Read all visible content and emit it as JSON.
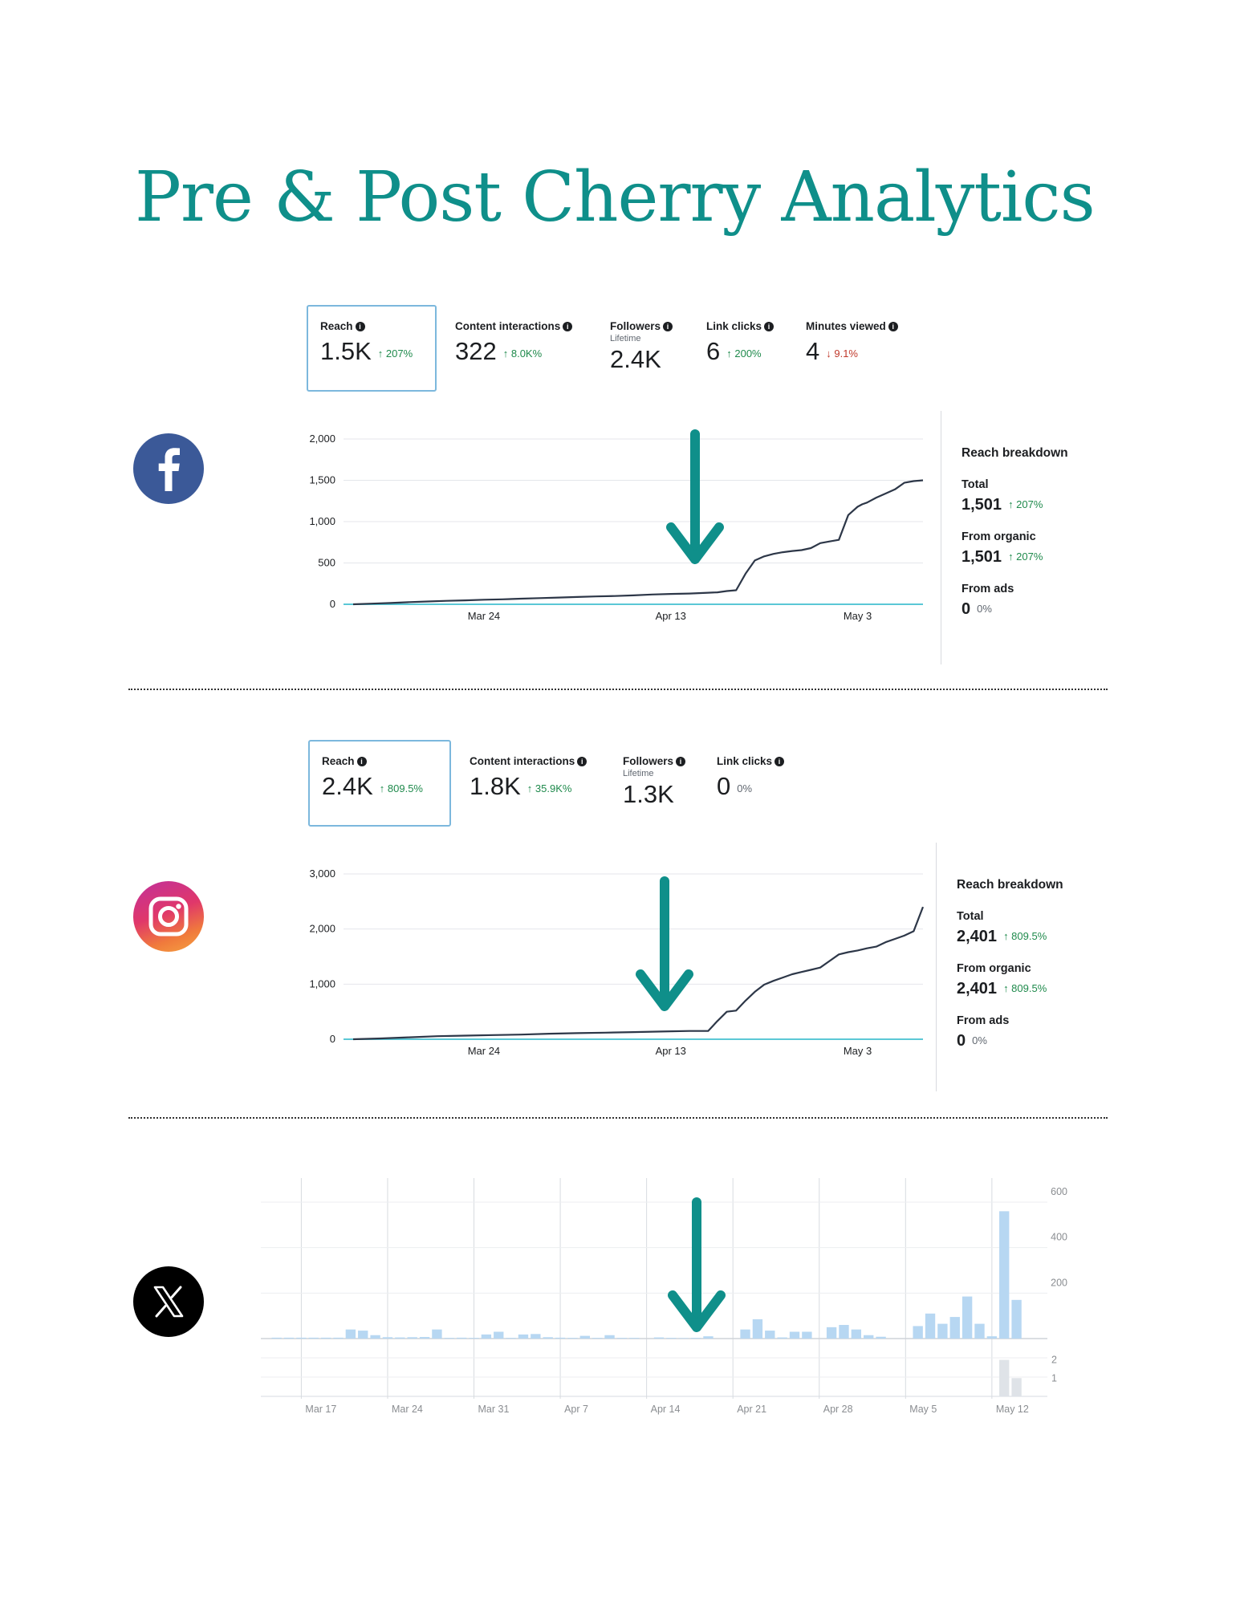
{
  "title": "Pre & Post Cherry Analytics",
  "icons": {
    "facebook": "facebook-icon",
    "instagram": "instagram-icon",
    "x": "x-logo-icon",
    "arrow": "arrow-down-icon",
    "info": "info-icon"
  },
  "colors": {
    "title": "#0f8f8a",
    "arrow": "#0f8f8a",
    "line": "#2d3748",
    "baseline": "#5bc8d6",
    "bar": "#b7d7f2",
    "up": "#1f8a4c",
    "down": "#c0392b",
    "facebook": "#3b5998"
  },
  "facebook": {
    "metrics": [
      {
        "label": "Reach",
        "value": "1.5K",
        "change": "↑ 207%",
        "dir": "up"
      },
      {
        "label": "Content interactions",
        "value": "322",
        "change": "↑ 8.0K%",
        "dir": "up"
      },
      {
        "label": "Followers",
        "sub": "Lifetime",
        "value": "2.4K",
        "change": "",
        "dir": "neutral"
      },
      {
        "label": "Link clicks",
        "value": "6",
        "change": "↑ 200%",
        "dir": "up"
      },
      {
        "label": "Minutes viewed",
        "value": "4",
        "change": "↓ 9.1%",
        "dir": "down"
      }
    ],
    "breakdown": {
      "title": "Reach breakdown",
      "total_label": "Total",
      "total_value": "1,501",
      "total_change": "↑ 207%",
      "organic_label": "From organic",
      "organic_value": "1,501",
      "organic_change": "↑ 207%",
      "ads_label": "From ads",
      "ads_value": "0",
      "ads_change": "0%"
    }
  },
  "instagram": {
    "metrics": [
      {
        "label": "Reach",
        "value": "2.4K",
        "change": "↑ 809.5%",
        "dir": "up"
      },
      {
        "label": "Content interactions",
        "value": "1.8K",
        "change": "↑ 35.9K%",
        "dir": "up"
      },
      {
        "label": "Followers",
        "sub": "Lifetime",
        "value": "1.3K",
        "change": "",
        "dir": "neutral"
      },
      {
        "label": "Link clicks",
        "value": "0",
        "change": "0%",
        "dir": "neutral"
      }
    ],
    "breakdown": {
      "title": "Reach breakdown",
      "total_label": "Total",
      "total_value": "2,401",
      "total_change": "↑ 809.5%",
      "organic_label": "From organic",
      "organic_value": "2,401",
      "organic_change": "↑ 809.5%",
      "ads_label": "From ads",
      "ads_value": "0",
      "ads_change": "0%"
    }
  },
  "chart_data": [
    {
      "id": "facebook-reach",
      "type": "line",
      "title": "",
      "ylim": [
        0,
        2000
      ],
      "yticks": [
        0,
        500,
        1000,
        1500,
        2000
      ],
      "ytick_labels": [
        "0",
        "500",
        "1,000",
        "1,500",
        "2,000"
      ],
      "xlim": [
        0,
        61
      ],
      "xticks": [
        {
          "x": 14,
          "label": "Mar 24"
        },
        {
          "x": 34,
          "label": "Apr 13"
        },
        {
          "x": 54,
          "label": "May 3"
        }
      ],
      "grid": true,
      "series": [
        {
          "x": [
            0,
            2,
            4,
            6,
            8,
            10,
            12,
            14,
            16,
            18,
            20,
            22,
            24,
            26,
            28,
            30,
            32,
            34,
            36,
            37,
            38,
            39,
            40,
            41,
            42,
            43,
            44,
            45,
            46,
            47,
            48,
            49,
            50,
            51,
            52,
            53,
            54,
            54.5,
            55,
            56,
            57,
            58,
            59,
            60,
            61
          ],
          "y": [
            0,
            8,
            16,
            26,
            34,
            42,
            48,
            55,
            60,
            68,
            75,
            82,
            88,
            95,
            100,
            108,
            118,
            125,
            130,
            135,
            140,
            145,
            160,
            170,
            370,
            530,
            580,
            610,
            630,
            645,
            655,
            680,
            740,
            760,
            780,
            1080,
            1180,
            1210,
            1230,
            1290,
            1340,
            1390,
            1470,
            1490,
            1500
          ]
        }
      ],
      "baseline": 0
    },
    {
      "id": "instagram-reach",
      "type": "line",
      "title": "",
      "ylim": [
        0,
        3000
      ],
      "yticks": [
        0,
        1000,
        2000,
        3000
      ],
      "ytick_labels": [
        "0",
        "1,000",
        "2,000",
        "3,000"
      ],
      "xlim": [
        0,
        61
      ],
      "xticks": [
        {
          "x": 14,
          "label": "Mar 24"
        },
        {
          "x": 34,
          "label": "Apr 13"
        },
        {
          "x": 54,
          "label": "May 3"
        }
      ],
      "grid": true,
      "series": [
        {
          "x": [
            0,
            3,
            6,
            9,
            12,
            15,
            18,
            21,
            24,
            27,
            30,
            33,
            36,
            38,
            39,
            40,
            41,
            42,
            43,
            44,
            45,
            46,
            47,
            48,
            49,
            50,
            51,
            52,
            53,
            54,
            55,
            56,
            57,
            58,
            59,
            60,
            61
          ],
          "y": [
            0,
            15,
            35,
            55,
            65,
            75,
            85,
            100,
            110,
            120,
            130,
            140,
            150,
            150,
            330,
            500,
            520,
            700,
            860,
            990,
            1060,
            1120,
            1180,
            1220,
            1260,
            1300,
            1420,
            1540,
            1580,
            1610,
            1650,
            1680,
            1760,
            1820,
            1880,
            1960,
            2401
          ]
        }
      ],
      "baseline": 0
    },
    {
      "id": "x-impressions",
      "type": "bar",
      "title": "",
      "ylim": [
        0,
        600
      ],
      "yticks": [
        200,
        400,
        600
      ],
      "ytick_labels": [
        "200",
        "400",
        "600"
      ],
      "categories_count": 63,
      "xticks": [
        {
          "i": 3,
          "label": "Mar 17"
        },
        {
          "i": 10,
          "label": "Mar 24"
        },
        {
          "i": 17,
          "label": "Mar 31"
        },
        {
          "i": 24,
          "label": "Apr 7"
        },
        {
          "i": 31,
          "label": "Apr 14"
        },
        {
          "i": 38,
          "label": "Apr 21"
        },
        {
          "i": 45,
          "label": "Apr 28"
        },
        {
          "i": 52,
          "label": "May 5"
        },
        {
          "i": 59,
          "label": "May 12"
        }
      ],
      "values": [
        4,
        4,
        4,
        4,
        4,
        4,
        40,
        35,
        15,
        6,
        5,
        6,
        7,
        40,
        3,
        4,
        3,
        18,
        30,
        3,
        18,
        20,
        6,
        4,
        3,
        12,
        3,
        15,
        3,
        3,
        0,
        5,
        3,
        2,
        3,
        10,
        0,
        0,
        40,
        85,
        35,
        5,
        30,
        30,
        0,
        50,
        60,
        40,
        15,
        8,
        0,
        0,
        55,
        110,
        65,
        95,
        185,
        65,
        10,
        560,
        170,
        0,
        0
      ],
      "secondary": {
        "yticks": [
          1,
          2
        ],
        "values_index": [
          59,
          60
        ],
        "values": [
          2,
          1
        ]
      }
    }
  ]
}
